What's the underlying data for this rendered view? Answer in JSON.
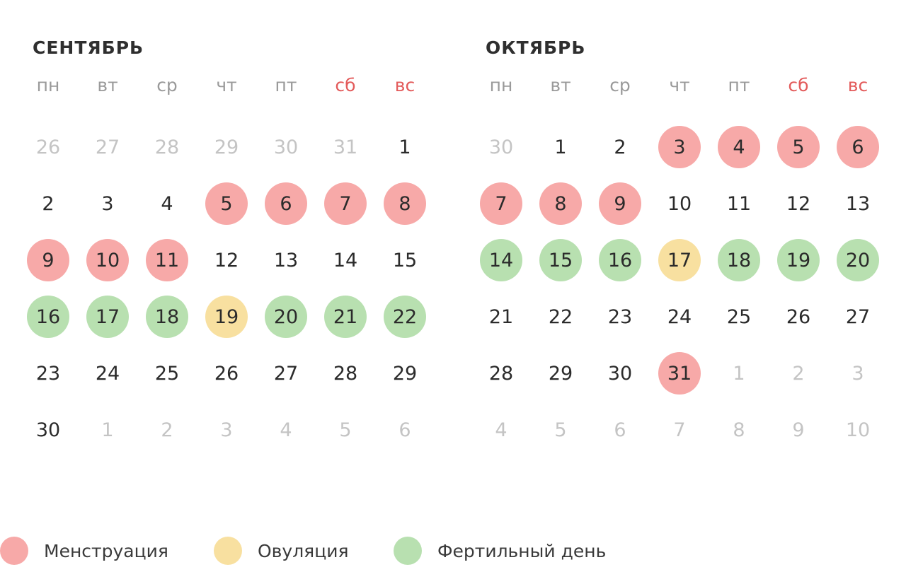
{
  "colors": {
    "menstruation": "#f7a9a8",
    "ovulation": "#f8e0a0",
    "fertile": "#b8e0b0",
    "weekend_text": "#e35b5b",
    "other_month_text": "#c4c4c4"
  },
  "weekdays": [
    {
      "label": "пн",
      "weekend": false
    },
    {
      "label": "вт",
      "weekend": false
    },
    {
      "label": "ср",
      "weekend": false
    },
    {
      "label": "чт",
      "weekend": false
    },
    {
      "label": "пт",
      "weekend": false
    },
    {
      "label": "сб",
      "weekend": true
    },
    {
      "label": "вс",
      "weekend": true
    }
  ],
  "months": [
    {
      "key": "sep",
      "title": "СЕНТЯБРЬ",
      "days": [
        {
          "n": "26",
          "other": true
        },
        {
          "n": "27",
          "other": true
        },
        {
          "n": "28",
          "other": true
        },
        {
          "n": "29",
          "other": true
        },
        {
          "n": "30",
          "other": true
        },
        {
          "n": "31",
          "other": true
        },
        {
          "n": "1"
        },
        {
          "n": "2"
        },
        {
          "n": "3"
        },
        {
          "n": "4"
        },
        {
          "n": "5",
          "mark": "mens"
        },
        {
          "n": "6",
          "mark": "mens"
        },
        {
          "n": "7",
          "mark": "mens"
        },
        {
          "n": "8",
          "mark": "mens"
        },
        {
          "n": "9",
          "mark": "mens"
        },
        {
          "n": "10",
          "mark": "mens"
        },
        {
          "n": "11",
          "mark": "mens"
        },
        {
          "n": "12"
        },
        {
          "n": "13"
        },
        {
          "n": "14"
        },
        {
          "n": "15"
        },
        {
          "n": "16",
          "mark": "fert"
        },
        {
          "n": "17",
          "mark": "fert"
        },
        {
          "n": "18",
          "mark": "fert"
        },
        {
          "n": "19",
          "mark": "ovul"
        },
        {
          "n": "20",
          "mark": "fert"
        },
        {
          "n": "21",
          "mark": "fert"
        },
        {
          "n": "22",
          "mark": "fert"
        },
        {
          "n": "23"
        },
        {
          "n": "24"
        },
        {
          "n": "25"
        },
        {
          "n": "26"
        },
        {
          "n": "27"
        },
        {
          "n": "28"
        },
        {
          "n": "29"
        },
        {
          "n": "30"
        },
        {
          "n": "1",
          "other": true
        },
        {
          "n": "2",
          "other": true
        },
        {
          "n": "3",
          "other": true
        },
        {
          "n": "4",
          "other": true
        },
        {
          "n": "5",
          "other": true
        },
        {
          "n": "6",
          "other": true
        }
      ]
    },
    {
      "key": "oct",
      "title": "ОКТЯБРЬ",
      "days": [
        {
          "n": "30",
          "other": true
        },
        {
          "n": "1"
        },
        {
          "n": "2"
        },
        {
          "n": "3",
          "mark": "mens"
        },
        {
          "n": "4",
          "mark": "mens"
        },
        {
          "n": "5",
          "mark": "mens"
        },
        {
          "n": "6",
          "mark": "mens"
        },
        {
          "n": "7",
          "mark": "mens"
        },
        {
          "n": "8",
          "mark": "mens"
        },
        {
          "n": "9",
          "mark": "mens"
        },
        {
          "n": "10"
        },
        {
          "n": "11"
        },
        {
          "n": "12"
        },
        {
          "n": "13"
        },
        {
          "n": "14",
          "mark": "fert"
        },
        {
          "n": "15",
          "mark": "fert"
        },
        {
          "n": "16",
          "mark": "fert"
        },
        {
          "n": "17",
          "mark": "ovul"
        },
        {
          "n": "18",
          "mark": "fert"
        },
        {
          "n": "19",
          "mark": "fert"
        },
        {
          "n": "20",
          "mark": "fert"
        },
        {
          "n": "21"
        },
        {
          "n": "22"
        },
        {
          "n": "23"
        },
        {
          "n": "24"
        },
        {
          "n": "25"
        },
        {
          "n": "26"
        },
        {
          "n": "27"
        },
        {
          "n": "28"
        },
        {
          "n": "29"
        },
        {
          "n": "30"
        },
        {
          "n": "31",
          "mark": "mens"
        },
        {
          "n": "1",
          "other": true
        },
        {
          "n": "2",
          "other": true
        },
        {
          "n": "3",
          "other": true
        },
        {
          "n": "4",
          "other": true
        },
        {
          "n": "5",
          "other": true
        },
        {
          "n": "6",
          "other": true
        },
        {
          "n": "7",
          "other": true
        },
        {
          "n": "8",
          "other": true
        },
        {
          "n": "9",
          "other": true
        },
        {
          "n": "10",
          "other": true
        }
      ]
    }
  ],
  "legend": [
    {
      "key": "mens",
      "label": "Менструация"
    },
    {
      "key": "ovul",
      "label": "Овуляция"
    },
    {
      "key": "fert",
      "label": "Фертильный день"
    }
  ]
}
